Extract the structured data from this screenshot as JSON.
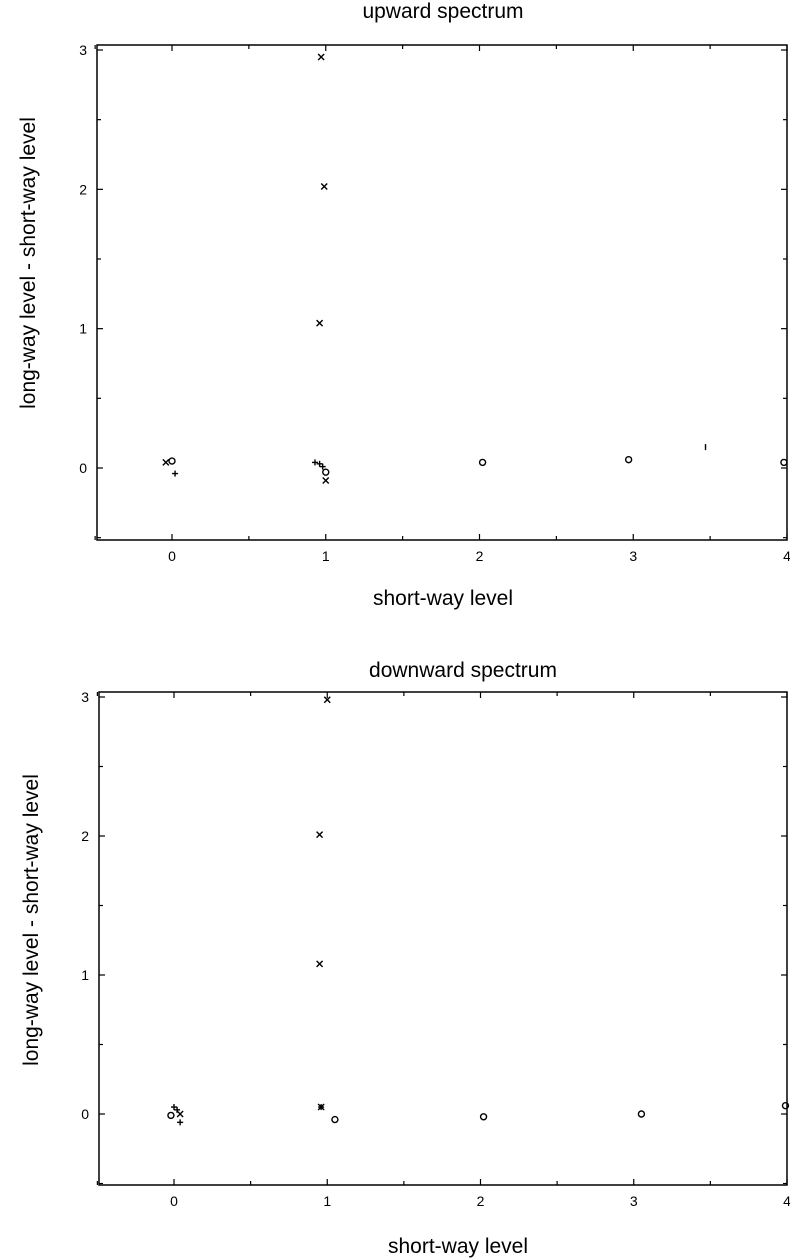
{
  "chart_data": [
    {
      "type": "scatter",
      "title": "upward spectrum",
      "xlabel": "short-way level",
      "ylabel": "long-way level - short-way level",
      "xlim": [
        -0.5,
        4
      ],
      "ylim": [
        -0.5,
        3
      ],
      "xticks": [
        "0",
        "1",
        "2",
        "3",
        "4"
      ],
      "yticks": [
        "0",
        "1",
        "2",
        "3"
      ],
      "points": [
        {
          "x": 0.97,
          "y": 2.95,
          "marker": "x"
        },
        {
          "x": 0.99,
          "y": 2.02,
          "marker": "x"
        },
        {
          "x": 0.96,
          "y": 1.04,
          "marker": "x"
        },
        {
          "x": -0.04,
          "y": 0.04,
          "marker": "x"
        },
        {
          "x": 0.0,
          "y": 0.05,
          "marker": "o"
        },
        {
          "x": 0.02,
          "y": -0.04,
          "marker": "+"
        },
        {
          "x": 0.93,
          "y": 0.04,
          "marker": "+"
        },
        {
          "x": 0.96,
          "y": 0.03,
          "marker": "+"
        },
        {
          "x": 0.98,
          "y": 0.01,
          "marker": "+"
        },
        {
          "x": 1.0,
          "y": -0.03,
          "marker": "o"
        },
        {
          "x": 1.0,
          "y": -0.09,
          "marker": "x"
        },
        {
          "x": 2.02,
          "y": 0.04,
          "marker": "o"
        },
        {
          "x": 2.97,
          "y": 0.06,
          "marker": "o"
        },
        {
          "x": 3.47,
          "y": 0.15,
          "marker": "|"
        },
        {
          "x": 3.98,
          "y": 0.04,
          "marker": "o"
        }
      ]
    },
    {
      "type": "scatter",
      "title": "downward spectrum",
      "xlabel": "short-way level",
      "ylabel": "long-way level - short-way level",
      "xlim": [
        -0.5,
        4
      ],
      "ylim": [
        -0.5,
        3
      ],
      "xticks": [
        "0",
        "1",
        "2",
        "3",
        "4"
      ],
      "yticks": [
        "0",
        "1",
        "2",
        "3"
      ],
      "points": [
        {
          "x": 1.0,
          "y": 2.98,
          "marker": "x"
        },
        {
          "x": 0.95,
          "y": 2.01,
          "marker": "x"
        },
        {
          "x": 0.95,
          "y": 1.08,
          "marker": "x"
        },
        {
          "x": 0.0,
          "y": 0.05,
          "marker": "+"
        },
        {
          "x": 0.02,
          "y": 0.03,
          "marker": "+"
        },
        {
          "x": -0.02,
          "y": -0.01,
          "marker": "o"
        },
        {
          "x": 0.04,
          "y": 0.0,
          "marker": "x"
        },
        {
          "x": 0.04,
          "y": -0.06,
          "marker": "+"
        },
        {
          "x": 0.96,
          "y": 0.05,
          "marker": "*"
        },
        {
          "x": 1.05,
          "y": -0.04,
          "marker": "o"
        },
        {
          "x": 2.02,
          "y": -0.02,
          "marker": "o"
        },
        {
          "x": 3.05,
          "y": 0.0,
          "marker": "o"
        },
        {
          "x": 3.99,
          "y": 0.06,
          "marker": "o"
        }
      ]
    }
  ]
}
